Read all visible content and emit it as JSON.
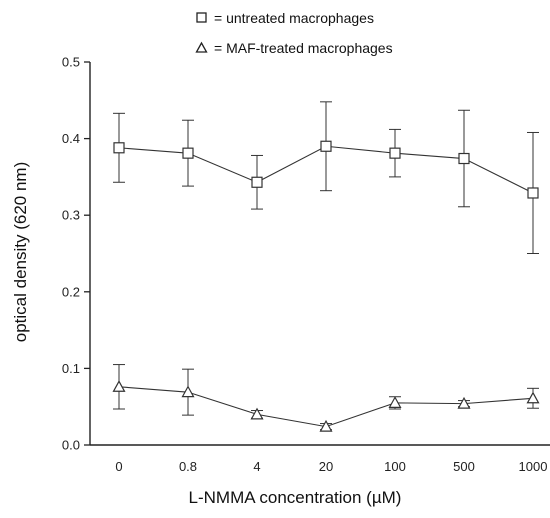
{
  "chart_data": {
    "type": "line",
    "title": "",
    "xlabel": "L-NMMA concentration (µM)",
    "ylabel": "optical density (620 nm)",
    "categories": [
      "0",
      "0.8",
      "4",
      "20",
      "100",
      "500",
      "1000"
    ],
    "ylim": [
      0.0,
      0.5
    ],
    "yticks": [
      "0.0",
      "0.1",
      "0.2",
      "0.3",
      "0.4",
      "0.5"
    ],
    "grid": false,
    "legend_position": "top",
    "series": [
      {
        "name": "= untreated macrophages",
        "marker": "square",
        "values": [
          0.388,
          0.381,
          0.343,
          0.39,
          0.381,
          0.374,
          0.329
        ],
        "errors": [
          0.045,
          0.043,
          0.035,
          0.058,
          0.031,
          0.063,
          0.079
        ]
      },
      {
        "name": "= MAF-treated macrophages",
        "marker": "triangle",
        "values": [
          0.076,
          0.069,
          0.04,
          0.024,
          0.055,
          0.054,
          0.061
        ],
        "errors": [
          0.029,
          0.03,
          0.005,
          0.004,
          0.008,
          0.004,
          0.013
        ]
      }
    ],
    "colors": {
      "line": "#333333",
      "axis": "#222222",
      "marker_fill": "#ffffff"
    }
  }
}
